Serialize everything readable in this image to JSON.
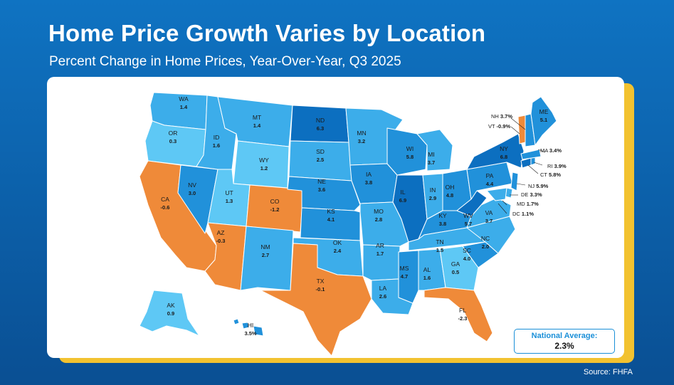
{
  "header": {
    "title": "Home Price Growth Varies by Location",
    "subtitle": "Percent Change in Home Prices, Year-Over-Year, Q3 2025"
  },
  "colors": {
    "very_light": "#5ec8f5",
    "light": "#3cadea",
    "medium": "#2191da",
    "dark": "#0c6fc0",
    "negative": "#ef8a39",
    "background": "#0c5fa8",
    "accent_border": "#f2c230"
  },
  "states": [
    {
      "abbr": "WA",
      "value": "1.4"
    },
    {
      "abbr": "OR",
      "value": "0.3"
    },
    {
      "abbr": "CA",
      "value": "-0.6"
    },
    {
      "abbr": "NV",
      "value": "3.0"
    },
    {
      "abbr": "ID",
      "value": "1.6"
    },
    {
      "abbr": "MT",
      "value": "1.4"
    },
    {
      "abbr": "WY",
      "value": "1.2"
    },
    {
      "abbr": "UT",
      "value": "1.3"
    },
    {
      "abbr": "AZ",
      "value": "-0.3"
    },
    {
      "abbr": "CO",
      "value": "-1.2"
    },
    {
      "abbr": "NM",
      "value": "2.7"
    },
    {
      "abbr": "ND",
      "value": "6.3"
    },
    {
      "abbr": "SD",
      "value": "2.5"
    },
    {
      "abbr": "NE",
      "value": "3.6"
    },
    {
      "abbr": "KS",
      "value": "4.1"
    },
    {
      "abbr": "OK",
      "value": "2.4"
    },
    {
      "abbr": "TX",
      "value": "-0.1"
    },
    {
      "abbr": "MN",
      "value": "3.2"
    },
    {
      "abbr": "IA",
      "value": "3.8"
    },
    {
      "abbr": "MO",
      "value": "2.8"
    },
    {
      "abbr": "AR",
      "value": "1.7"
    },
    {
      "abbr": "LA",
      "value": "2.6"
    },
    {
      "abbr": "WI",
      "value": "5.8"
    },
    {
      "abbr": "IL",
      "value": "6.9"
    },
    {
      "abbr": "MI",
      "value": "3.7"
    },
    {
      "abbr": "IN",
      "value": "2.9"
    },
    {
      "abbr": "OH",
      "value": "4.8"
    },
    {
      "abbr": "KY",
      "value": "3.8"
    },
    {
      "abbr": "TN",
      "value": "1.5"
    },
    {
      "abbr": "MS",
      "value": "4.7"
    },
    {
      "abbr": "AL",
      "value": "1.6"
    },
    {
      "abbr": "GA",
      "value": "0.5"
    },
    {
      "abbr": "FL",
      "value": "-2.3"
    },
    {
      "abbr": "SC",
      "value": "4.0"
    },
    {
      "abbr": "NC",
      "value": "2.0"
    },
    {
      "abbr": "VA",
      "value": "3.7"
    },
    {
      "abbr": "WV",
      "value": "5.7"
    },
    {
      "abbr": "PA",
      "value": "4.4"
    },
    {
      "abbr": "NY",
      "value": "6.8"
    },
    {
      "abbr": "ME",
      "value": "5.1"
    },
    {
      "abbr": "AK",
      "value": "0.9"
    },
    {
      "abbr": "HI",
      "value": "3.5%"
    }
  ],
  "callouts": [
    {
      "abbr": "NH",
      "value": "3.7%"
    },
    {
      "abbr": "VT",
      "value": "-0.9%"
    },
    {
      "abbr": "MA",
      "value": "3.4%"
    },
    {
      "abbr": "RI",
      "value": "3.9%"
    },
    {
      "abbr": "CT",
      "value": "5.8%"
    },
    {
      "abbr": "NJ",
      "value": "5.9%"
    },
    {
      "abbr": "DE",
      "value": "3.3%"
    },
    {
      "abbr": "MD",
      "value": "1.7%"
    },
    {
      "abbr": "DC",
      "value": "1.1%"
    }
  ],
  "national_average": {
    "label": "National Average:",
    "value": "2.3%"
  },
  "source": "Source: FHFA"
}
